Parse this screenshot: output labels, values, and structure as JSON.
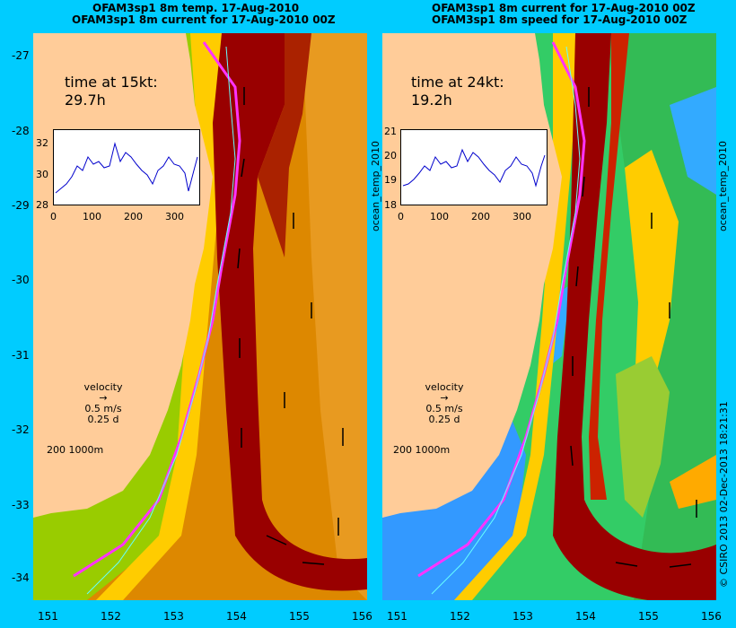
{
  "left_panel": {
    "title_line1": "OFAM3sp1 8m temp. 17-Aug-2010",
    "title_line2": "OFAM3sp1 8m current for 17-Aug-2010 00Z",
    "time_label": "time at 15kt:",
    "time_value": "29.7h",
    "inset_yticks": [
      "32",
      "30",
      "28"
    ],
    "inset_xticks": [
      "0",
      "100",
      "200",
      "300"
    ],
    "colorbar_label": ""
  },
  "right_panel": {
    "title_line1": "OFAM3sp1 8m current for 17-Aug-2010 00Z",
    "title_line2": "OFAM3sp1 8m speed for 17-Aug-2010 00Z",
    "time_label": "time at 24kt:",
    "time_value": "19.2h",
    "inset_yticks": [
      "21",
      "20",
      "19",
      "18"
    ],
    "inset_xticks": [
      "0",
      "100",
      "200",
      "300"
    ],
    "inset_side_label": "ocean_temp_2010"
  },
  "side_label_right": "ocean_temp_2010",
  "copyright": "© CSIRO 2013   02-Dec-2013 18:21:31",
  "velocity_legend": {
    "title": "velocity",
    "line1": "0.5 m/s",
    "line2": "0.25 d"
  },
  "depth_scale": {
    "a": "200",
    "b": "1000m"
  },
  "lat_ticks": [
    "-27",
    "-28",
    "-29",
    "-30",
    "-31",
    "-32",
    "-33",
    "-34"
  ],
  "lon_ticks": [
    "151",
    "152",
    "153",
    "154",
    "155",
    "156"
  ],
  "colors": {
    "background": "#00ccff",
    "land": "#ffcc99",
    "route": "#ff33ff",
    "inset_line": "#0000cc"
  }
}
